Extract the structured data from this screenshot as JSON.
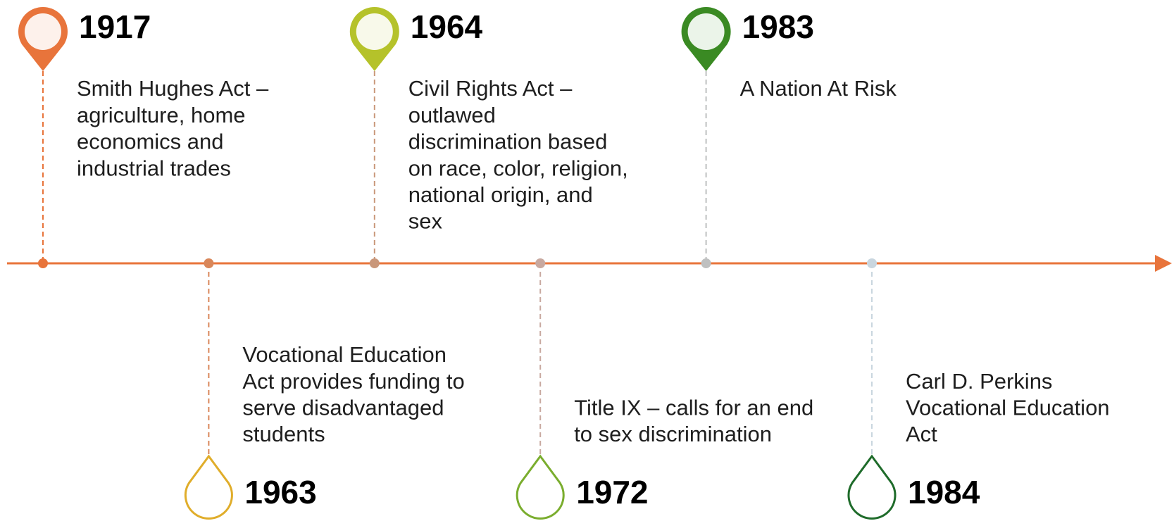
{
  "events": [
    {
      "year": "1917",
      "position": "top",
      "color": "#e8743b",
      "dot": "#e8743b",
      "lines": [
        "Smith Hughes Act –",
        "agriculture, home",
        "economics and",
        "industrial trades"
      ]
    },
    {
      "year": "1963",
      "position": "bottom",
      "color": "#e0ad2a",
      "dot": "#d9875a",
      "lines": [
        "Vocational Education",
        "Act provides funding to",
        "serve disadvantaged",
        "students"
      ]
    },
    {
      "year": "1964",
      "position": "top",
      "color": "#b5c22a",
      "dot": "#c9977a",
      "lines": [
        "Civil Rights Act –",
        "outlawed",
        "discrimination based",
        "on race, color, religion,",
        "national origin, and",
        "sex"
      ]
    },
    {
      "year": "1972",
      "position": "bottom",
      "color": "#7aad2e",
      "dot": "#c8a9a0",
      "lines": [
        "Title IX – calls for an end",
        "to sex discrimination"
      ]
    },
    {
      "year": "1983",
      "position": "top",
      "color": "#3a8a23",
      "dot": "#bfc0c0",
      "lines": [
        "A Nation At Risk"
      ]
    },
    {
      "year": "1984",
      "position": "bottom",
      "color": "#1e6b2a",
      "dot": "#c9d6df",
      "lines": [
        "Carl D. Perkins",
        "Vocational Education",
        "Act"
      ]
    }
  ]
}
